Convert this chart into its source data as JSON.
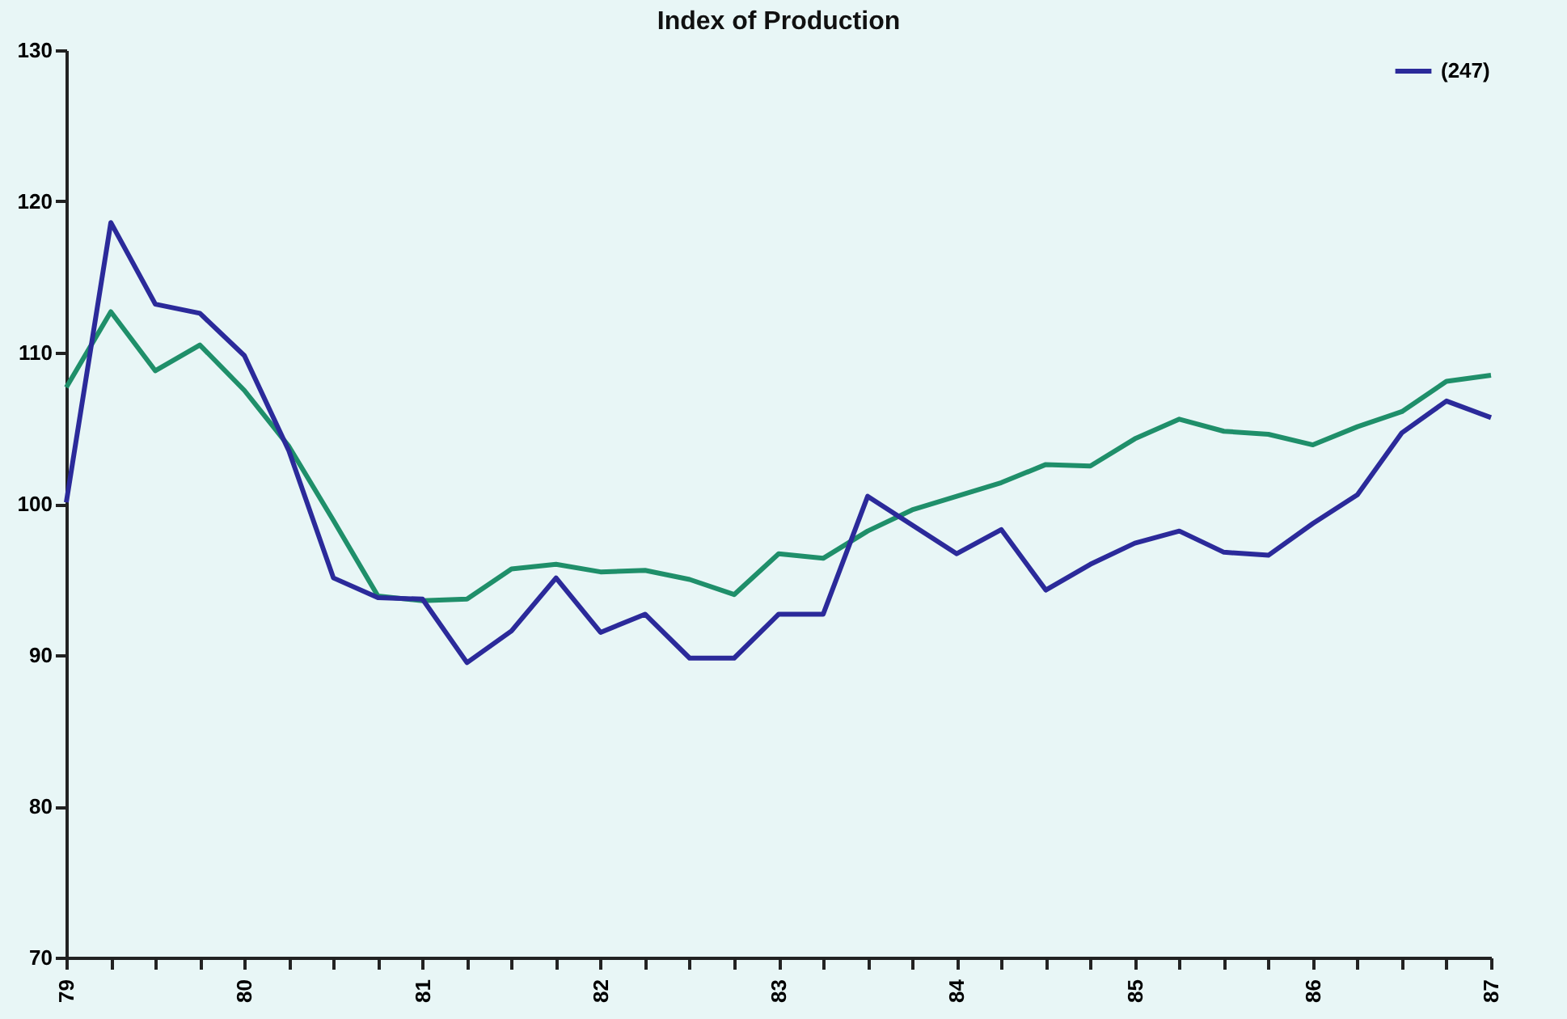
{
  "chart_data": {
    "type": "line",
    "title": "Index of Production",
    "x": [
      79,
      79.25,
      79.5,
      79.75,
      80,
      80.25,
      80.5,
      80.75,
      81,
      81.25,
      81.5,
      81.75,
      82,
      82.25,
      82.5,
      82.75,
      83,
      83.25,
      83.5,
      83.75,
      84,
      84.25,
      84.5,
      84.75,
      85,
      85.25,
      85.5,
      85.75,
      86,
      86.25,
      86.5,
      86.75,
      87
    ],
    "series": [
      {
        "name": null,
        "color": "#1f8f6a",
        "values": [
          107.7,
          112.7,
          108.8,
          110.5,
          107.5,
          103.8,
          98.9,
          93.9,
          93.6,
          93.7,
          95.7,
          96.0,
          95.5,
          95.6,
          95.0,
          94.0,
          96.7,
          96.4,
          98.2,
          99.6,
          100.5,
          101.4,
          102.6,
          102.5,
          104.3,
          105.6,
          104.8,
          104.6,
          103.9,
          105.1,
          106.1,
          108.1,
          108.5
        ]
      },
      {
        "name": "(247)",
        "color": "#2b2a9a",
        "values": [
          100.1,
          118.6,
          113.2,
          112.6,
          109.8,
          103.5,
          95.1,
          93.8,
          93.7,
          89.5,
          91.6,
          95.1,
          91.5,
          92.7,
          89.8,
          89.8,
          92.7,
          92.7,
          100.5,
          98.6,
          96.7,
          98.3,
          94.3,
          96.0,
          97.4,
          98.2,
          96.8,
          96.6,
          98.7,
          100.6,
          104.7,
          106.8,
          105.7
        ]
      }
    ],
    "xlim": [
      79,
      87
    ],
    "xticks": [
      79,
      {
        "value": 79.25,
        "label": null
      },
      {
        "value": 79.5,
        "label": null
      },
      {
        "value": 79.75,
        "label": null
      },
      80,
      {
        "value": 80.25,
        "label": null
      },
      {
        "value": 80.5,
        "label": null
      },
      {
        "value": 80.75,
        "label": null
      },
      81,
      {
        "value": 81.25,
        "label": null
      },
      {
        "value": 81.5,
        "label": null
      },
      {
        "value": 81.75,
        "label": null
      },
      82,
      {
        "value": 82.25,
        "label": null
      },
      {
        "value": 82.5,
        "label": null
      },
      {
        "value": 82.75,
        "label": null
      },
      83,
      {
        "value": 83.25,
        "label": null
      },
      {
        "value": 83.5,
        "label": null
      },
      {
        "value": 83.75,
        "label": null
      },
      84,
      {
        "value": 84.25,
        "label": null
      },
      {
        "value": 84.5,
        "label": null
      },
      {
        "value": 84.75,
        "label": null
      },
      85,
      {
        "value": 85.25,
        "label": null
      },
      {
        "value": 85.5,
        "label": null
      },
      {
        "value": 85.75,
        "label": null
      },
      86,
      {
        "value": 86.25,
        "label": null
      },
      {
        "value": 86.5,
        "label": null
      },
      {
        "value": 86.75,
        "label": null
      },
      87
    ],
    "ylim": [
      70,
      130
    ],
    "yticks": [
      70,
      80,
      90,
      100,
      110,
      120,
      130
    ],
    "grid": false,
    "legend": "top right",
    "marker": "none",
    "line_style": "solid"
  }
}
